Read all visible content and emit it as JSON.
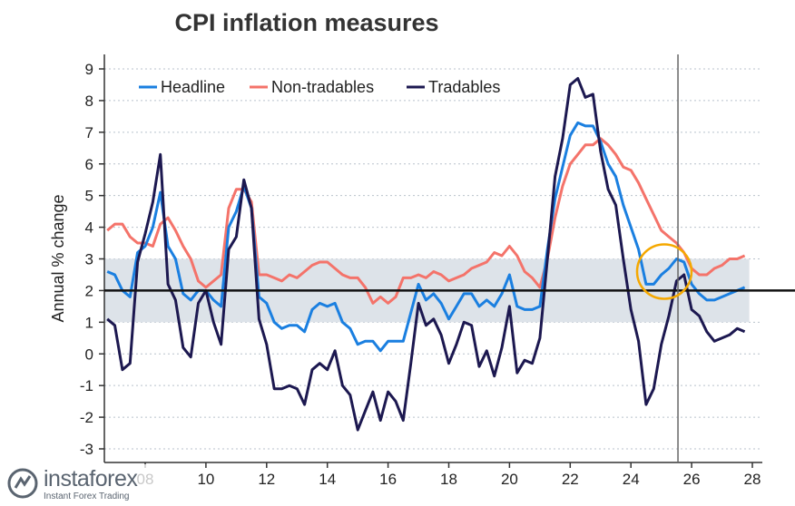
{
  "chart_data": {
    "type": "line",
    "title": "CPI inflation measures",
    "ylabel": "Annual % change",
    "xlabel": "",
    "ylim": [
      -3.3,
      9.3
    ],
    "xlim": [
      2006.65,
      2028.33
    ],
    "yticks": [
      -3,
      -2,
      -1,
      0,
      1,
      2,
      3,
      4,
      5,
      6,
      7,
      8,
      9
    ],
    "xticks": [
      2008,
      2010,
      2012,
      2014,
      2016,
      2018,
      2020,
      2022,
      2024,
      2026,
      2028
    ],
    "xtick_labels": [
      "08",
      "10",
      "12",
      "14",
      "16",
      "18",
      "20",
      "22",
      "24",
      "26",
      "28"
    ],
    "grid": "horizontal dotted",
    "legend_position": "top-left",
    "target_band": [
      1,
      3
    ],
    "target_line": 2,
    "forecast_divider_x": 2025.55,
    "highlight_circle": {
      "x": 2025.1,
      "y": 2.6,
      "color": "#f5a800"
    },
    "x": [
      2006.75,
      2007,
      2007.25,
      2007.5,
      2007.75,
      2008,
      2008.25,
      2008.5,
      2008.75,
      2009,
      2009.25,
      2009.5,
      2009.75,
      2010,
      2010.25,
      2010.5,
      2010.75,
      2011,
      2011.25,
      2011.5,
      2011.75,
      2012,
      2012.25,
      2012.5,
      2012.75,
      2013,
      2013.25,
      2013.5,
      2013.75,
      2014,
      2014.25,
      2014.5,
      2014.75,
      2015,
      2015.25,
      2015.5,
      2015.75,
      2016,
      2016.25,
      2016.5,
      2016.75,
      2017,
      2017.25,
      2017.5,
      2017.75,
      2018,
      2018.25,
      2018.5,
      2018.75,
      2019,
      2019.25,
      2019.5,
      2019.75,
      2020,
      2020.25,
      2020.5,
      2020.75,
      2021,
      2021.25,
      2021.5,
      2021.75,
      2022,
      2022.25,
      2022.5,
      2022.75,
      2023,
      2023.25,
      2023.5,
      2023.75,
      2024,
      2024.25,
      2024.5,
      2024.75,
      2025,
      2025.25,
      2025.5,
      2025.75,
      2026,
      2026.25,
      2026.5,
      2026.75,
      2027,
      2027.25,
      2027.5,
      2027.75
    ],
    "series": [
      {
        "name": "Headline",
        "color": "#1a7fe0",
        "values": [
          2.6,
          2.5,
          2.0,
          1.8,
          3.2,
          3.4,
          4.0,
          5.1,
          3.4,
          3.0,
          1.9,
          1.7,
          2.0,
          2.0,
          1.7,
          1.5,
          4.0,
          4.5,
          5.3,
          4.6,
          1.8,
          1.6,
          1.0,
          0.8,
          0.9,
          0.9,
          0.7,
          1.4,
          1.6,
          1.5,
          1.6,
          1.0,
          0.8,
          0.3,
          0.4,
          0.4,
          0.1,
          0.4,
          0.4,
          0.4,
          1.3,
          2.2,
          1.7,
          1.9,
          1.6,
          1.1,
          1.5,
          1.9,
          1.9,
          1.5,
          1.7,
          1.5,
          1.9,
          2.5,
          1.5,
          1.4,
          1.4,
          1.5,
          3.3,
          4.9,
          5.9,
          6.9,
          7.3,
          7.2,
          7.2,
          6.7,
          6.0,
          5.6,
          4.7,
          4.0,
          3.3,
          2.2,
          2.2,
          2.5,
          2.7,
          3.0,
          2.9,
          2.2,
          1.9,
          1.7,
          1.7,
          1.8,
          1.9,
          2.0,
          2.1
        ]
      },
      {
        "name": "Non-tradables",
        "color": "#f4736a",
        "values": [
          3.9,
          4.1,
          4.1,
          3.7,
          3.5,
          3.5,
          3.4,
          4.1,
          4.3,
          3.9,
          3.4,
          3.0,
          2.3,
          2.1,
          2.3,
          2.5,
          4.6,
          5.2,
          5.2,
          4.8,
          2.5,
          2.5,
          2.4,
          2.3,
          2.5,
          2.4,
          2.6,
          2.8,
          2.9,
          2.9,
          2.7,
          2.5,
          2.4,
          2.4,
          2.1,
          1.6,
          1.8,
          1.6,
          1.8,
          2.4,
          2.4,
          2.5,
          2.4,
          2.6,
          2.5,
          2.3,
          2.4,
          2.5,
          2.7,
          2.8,
          2.9,
          3.2,
          3.1,
          3.4,
          3.1,
          2.6,
          2.4,
          2.1,
          3.0,
          4.3,
          5.3,
          6.0,
          6.3,
          6.6,
          6.6,
          6.8,
          6.6,
          6.3,
          5.9,
          5.8,
          5.4,
          4.9,
          4.4,
          3.9,
          3.7,
          3.5,
          3.2,
          2.7,
          2.5,
          2.5,
          2.7,
          2.8,
          3.0,
          3.0,
          3.1
        ]
      },
      {
        "name": "Tradables",
        "color": "#1c1850",
        "values": [
          1.1,
          0.9,
          -0.5,
          -0.3,
          2.9,
          3.8,
          4.8,
          6.3,
          2.2,
          1.7,
          0.2,
          -0.1,
          1.6,
          2.0,
          1.0,
          0.3,
          3.3,
          3.7,
          5.5,
          4.6,
          1.1,
          0.3,
          -1.1,
          -1.1,
          -1.0,
          -1.1,
          -1.6,
          -0.5,
          -0.3,
          -0.5,
          0.1,
          -1.0,
          -1.3,
          -2.4,
          -1.8,
          -1.2,
          -2.1,
          -1.2,
          -1.5,
          -2.1,
          -0.3,
          1.6,
          0.9,
          1.1,
          0.6,
          -0.3,
          0.3,
          1.0,
          0.9,
          -0.4,
          0.1,
          -0.7,
          0.2,
          1.5,
          -0.6,
          -0.2,
          -0.3,
          0.5,
          3.0,
          5.6,
          6.8,
          8.5,
          8.7,
          8.1,
          8.2,
          6.4,
          5.2,
          4.7,
          3.0,
          1.4,
          0.4,
          -1.6,
          -1.1,
          0.3,
          1.2,
          2.3,
          2.5,
          1.4,
          1.2,
          0.7,
          0.4,
          0.5,
          0.6,
          0.8,
          0.7
        ]
      }
    ]
  },
  "logo": {
    "brand": "instaforex",
    "tagline": "Instant Forex Trading"
  }
}
